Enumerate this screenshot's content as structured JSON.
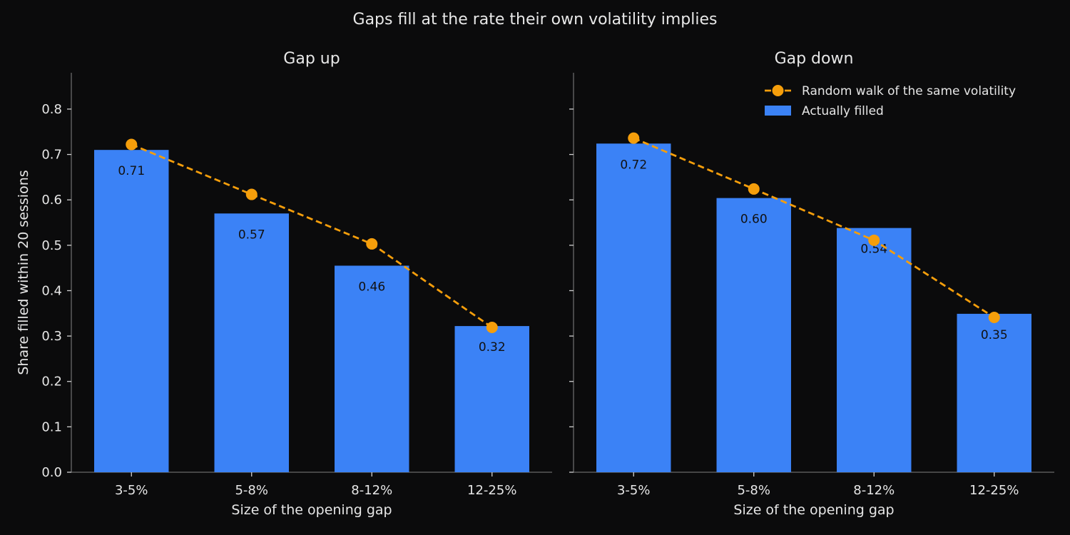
{
  "title": "Gaps fill at the rate their own volatility implies",
  "colors": {
    "background": "#0b0b0c",
    "bar": "#3b82f6",
    "line": "#f59e0b",
    "text": "#e6e6e6",
    "data_label": "#111111",
    "spine": "#6a6a6a"
  },
  "legend": {
    "placement": "top-right",
    "items": [
      {
        "label": "Random walk of the same volatility",
        "kind": "line"
      },
      {
        "label": "Actually filled",
        "kind": "bar"
      }
    ]
  },
  "chart_data": [
    {
      "type": "bar",
      "title": "Gap up",
      "xlabel": "Size of the opening gap",
      "ylabel": "Share filled within 20 sessions",
      "ylim": [
        0,
        0.88
      ],
      "yticks": [
        "0.0",
        "0.1",
        "0.2",
        "0.3",
        "0.4",
        "0.5",
        "0.6",
        "0.7",
        "0.8"
      ],
      "categories": [
        "3-5%",
        "5-8%",
        "8-12%",
        "12-25%"
      ],
      "series": [
        {
          "name": "Actually filled",
          "type": "bar",
          "values": [
            0.71,
            0.57,
            0.455,
            0.322
          ],
          "labels": [
            "0.71",
            "0.57",
            "0.46",
            "0.32"
          ]
        },
        {
          "name": "Random walk of the same volatility",
          "type": "line",
          "style": "dashed",
          "values": [
            0.722,
            0.612,
            0.503,
            0.319
          ]
        }
      ]
    },
    {
      "type": "bar",
      "title": "Gap down",
      "xlabel": "Size of the opening gap",
      "ylabel": "",
      "ylim": [
        0,
        0.88
      ],
      "yticks": [],
      "categories": [
        "3-5%",
        "5-8%",
        "8-12%",
        "12-25%"
      ],
      "series": [
        {
          "name": "Actually filled",
          "type": "bar",
          "values": [
            0.724,
            0.604,
            0.538,
            0.349
          ],
          "labels": [
            "0.72",
            "0.60",
            "0.54",
            "0.35"
          ]
        },
        {
          "name": "Random walk of the same volatility",
          "type": "line",
          "style": "dashed",
          "values": [
            0.736,
            0.624,
            0.511,
            0.341
          ]
        }
      ]
    }
  ]
}
